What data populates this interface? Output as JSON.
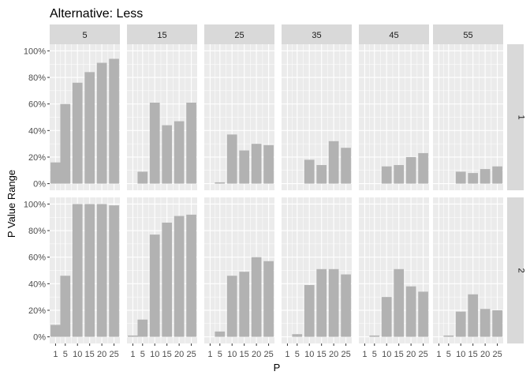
{
  "chart_data": {
    "type": "bar",
    "title": "Alternative: Less",
    "xlabel": "P",
    "ylabel": "P Value Range",
    "x_ticks": [
      "1",
      "5",
      "10",
      "15",
      "20",
      "25"
    ],
    "y_ticks": [
      "0%",
      "20%",
      "40%",
      "60%",
      "80%",
      "100%"
    ],
    "ylim": [
      0,
      1
    ],
    "column_facets": [
      "5",
      "15",
      "25",
      "35",
      "45",
      "55"
    ],
    "row_facets": [
      "1",
      "2"
    ],
    "categories": [
      1,
      5,
      10,
      15,
      20,
      25
    ],
    "bar_color": "#b2b2b2",
    "panel_background": "#ebebeb",
    "strip_background": "#d9d9d9",
    "grid": true,
    "panels": [
      {
        "row": "1",
        "col": "5",
        "values": [
          0.16,
          0.6,
          0.76,
          0.84,
          0.91,
          0.94
        ]
      },
      {
        "row": "1",
        "col": "15",
        "values": [
          null,
          0.09,
          0.61,
          0.44,
          0.47,
          0.61
        ]
      },
      {
        "row": "1",
        "col": "25",
        "values": [
          null,
          0.01,
          0.37,
          0.25,
          0.3,
          0.29
        ]
      },
      {
        "row": "1",
        "col": "35",
        "values": [
          null,
          null,
          0.18,
          0.14,
          0.32,
          0.27
        ]
      },
      {
        "row": "1",
        "col": "45",
        "values": [
          null,
          null,
          0.13,
          0.14,
          0.2,
          0.23
        ]
      },
      {
        "row": "1",
        "col": "55",
        "values": [
          null,
          null,
          0.09,
          0.08,
          0.11,
          0.13
        ]
      },
      {
        "row": "2",
        "col": "5",
        "values": [
          0.09,
          0.46,
          1.0,
          1.0,
          1.0,
          0.99
        ]
      },
      {
        "row": "2",
        "col": "15",
        "values": [
          0.01,
          0.13,
          0.77,
          0.86,
          0.91,
          0.92
        ]
      },
      {
        "row": "2",
        "col": "25",
        "values": [
          null,
          0.04,
          0.46,
          0.49,
          0.6,
          0.57
        ]
      },
      {
        "row": "2",
        "col": "35",
        "values": [
          null,
          0.02,
          0.39,
          0.51,
          0.51,
          0.47
        ]
      },
      {
        "row": "2",
        "col": "45",
        "values": [
          null,
          0.01,
          0.3,
          0.51,
          0.38,
          0.34
        ]
      },
      {
        "row": "2",
        "col": "55",
        "values": [
          null,
          0.01,
          0.19,
          0.32,
          0.21,
          0.2
        ]
      }
    ]
  }
}
